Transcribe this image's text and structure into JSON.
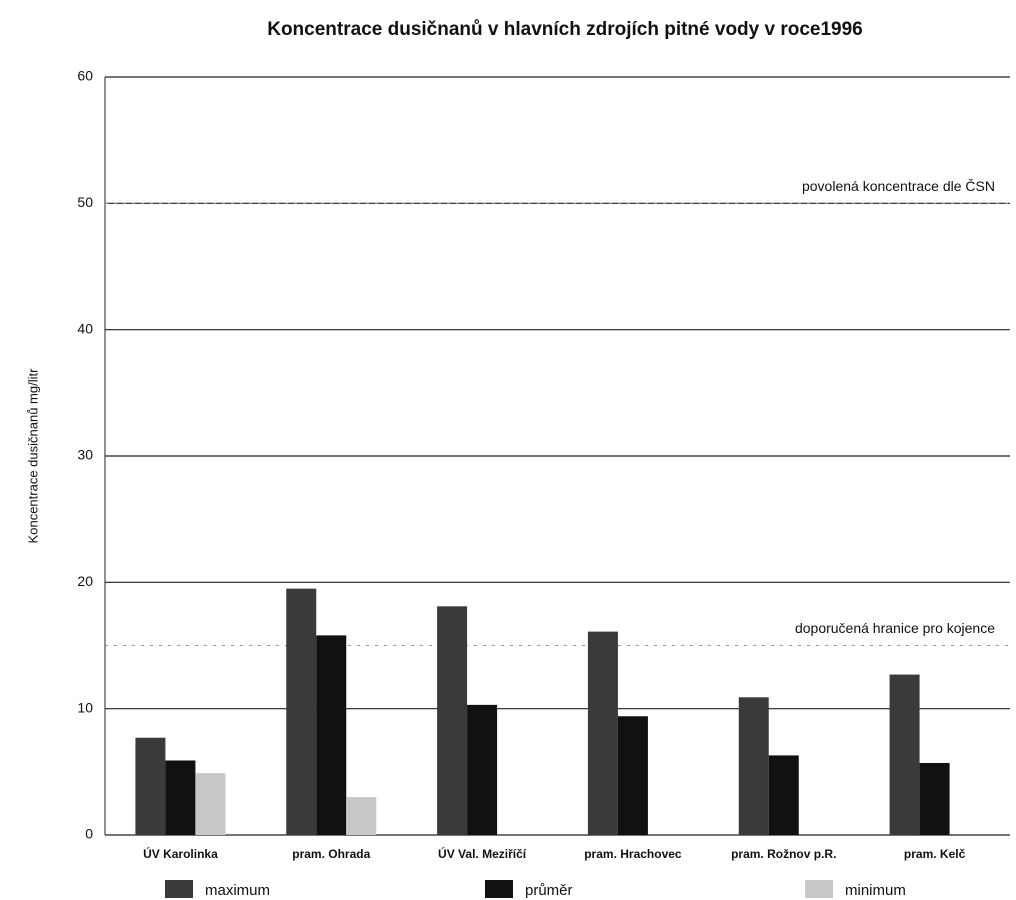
{
  "chart_data": {
    "type": "bar",
    "title": "Koncentrace dusičnanů v hlavních zdrojích pitné vody v roce1996",
    "y_label": "Koncentrace dusičnanů mg/litr",
    "categories": [
      "ÚV Karolinka",
      "pram. Ohrada",
      "ÚV Val. Meziříčí",
      "pram. Hrachovec",
      "pram. Rožnov p.R.",
      "pram. Kelč"
    ],
    "series": [
      {
        "name": "maximum",
        "color": "#3a3a3a",
        "values": [
          7.7,
          19.5,
          18.1,
          16.1,
          10.9,
          12.7
        ]
      },
      {
        "name": "průměr",
        "color": "#111111",
        "values": [
          5.9,
          15.8,
          10.3,
          9.4,
          6.3,
          5.7
        ]
      },
      {
        "name": "minimum",
        "color": "#c8c8c8",
        "values": [
          4.9,
          3,
          0,
          0,
          0,
          0
        ]
      }
    ],
    "reference_lines": [
      {
        "value": 50,
        "label": "povolená koncentrace dle ČSN"
      },
      {
        "value": 15,
        "label": "doporučená hranice pro kojence"
      }
    ],
    "ylim": [
      0,
      60
    ],
    "yticks": [
      0,
      10,
      20,
      30,
      40,
      50,
      60
    ],
    "grid": true
  }
}
